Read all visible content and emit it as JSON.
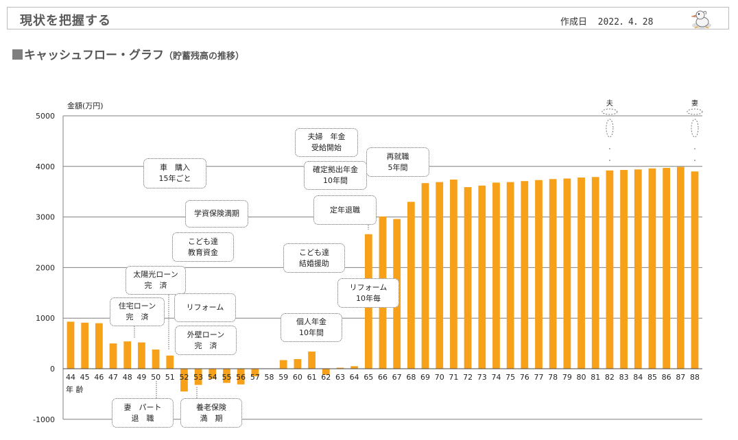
{
  "header": {
    "title": "現状を把握する",
    "created_label": "作成日",
    "created_date": "2022．4．28"
  },
  "section": {
    "title": "キャッシュフロー・グラフ",
    "subtitle": "（貯蓄残高の推移）"
  },
  "chart_data": {
    "type": "bar",
    "ylabel": "金額(万円)",
    "xlabel": "年 齢",
    "ylim": [
      -1000,
      5000
    ],
    "yticks": [
      -1000,
      0,
      1000,
      2000,
      3000,
      4000,
      5000
    ],
    "grid": true,
    "bar_color": "#F7A11A",
    "categories": [
      "44",
      "45",
      "46",
      "47",
      "48",
      "49",
      "50",
      "51",
      "52",
      "53",
      "54",
      "55",
      "56",
      "57",
      "58",
      "59",
      "60",
      "61",
      "62",
      "63",
      "64",
      "65",
      "66",
      "67",
      "68",
      "69",
      "70",
      "71",
      "72",
      "73",
      "74",
      "75",
      "76",
      "77",
      "78",
      "79",
      "80",
      "81",
      "82",
      "83",
      "84",
      "85",
      "86",
      "87",
      "88"
    ],
    "values": [
      930,
      910,
      900,
      500,
      540,
      520,
      380,
      260,
      -450,
      -320,
      -200,
      -280,
      -310,
      -150,
      0,
      170,
      190,
      340,
      -120,
      20,
      50,
      2660,
      3010,
      2960,
      3300,
      3670,
      3690,
      3740,
      3590,
      3620,
      3680,
      3690,
      3710,
      3730,
      3750,
      3760,
      3780,
      3790,
      3920,
      3930,
      3940,
      3960,
      3970,
      3990,
      3900
    ],
    "markers": [
      {
        "label": "夫",
        "category": "82"
      },
      {
        "label": "妻",
        "category": "88"
      }
    ],
    "annotations": [
      {
        "text": "住宅ローン\n完　済"
      },
      {
        "text": "太陽光ローン\n完　済"
      },
      {
        "text": "車　購入\n15年ごと"
      },
      {
        "text": "学資保険満期"
      },
      {
        "text": "こども達\n教育資金"
      },
      {
        "text": "リフォーム"
      },
      {
        "text": "外壁ローン\n完　済"
      },
      {
        "text": "妻　パート\n退　職"
      },
      {
        "text": "養老保険\n満　期"
      },
      {
        "text": "個人年金\n10年間"
      },
      {
        "text": "こども達\n結婚援助"
      },
      {
        "text": "夫婦　年金\n受給開始"
      },
      {
        "text": "確定拠出年金\n10年間"
      },
      {
        "text": "定年退職"
      },
      {
        "text": "再就職\n5年間"
      },
      {
        "text": "リフォーム\n10年毎"
      }
    ]
  }
}
